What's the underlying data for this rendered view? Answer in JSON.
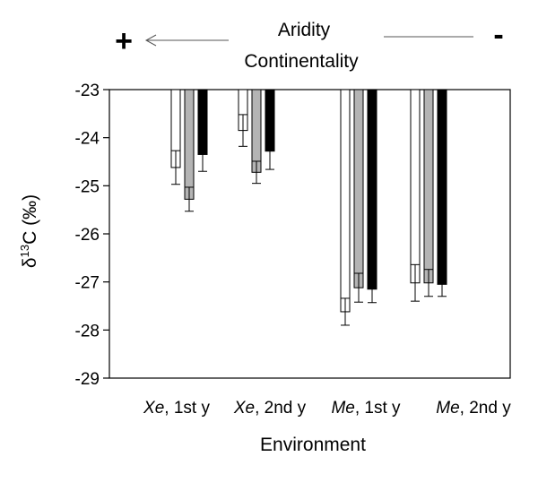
{
  "header": {
    "label_line1": "Aridity",
    "label_line2": "Continentality",
    "plus": "+",
    "minus": "-"
  },
  "chart_data": {
    "type": "bar",
    "categories_main": [
      "Xe",
      "Xe",
      "Me",
      "Me"
    ],
    "categories_rest": [
      ", 1st y",
      ", 2nd y",
      ", 1st y",
      ", 2nd y"
    ],
    "ylabel": {
      "prefix": "δ",
      "sup": "13",
      "suffix": "C (‰)"
    },
    "xlabel": "Environment",
    "ylim": [
      -29,
      -23
    ],
    "yticks": [
      -23,
      -24,
      -25,
      -26,
      -27,
      -28,
      -29
    ],
    "grid": false,
    "bar_baseline": -23,
    "series": [
      {
        "color": "#ffffff",
        "values": [
          -24.62,
          -23.85,
          -27.62,
          -27.02
        ],
        "errors": [
          0.35,
          0.33,
          0.28,
          0.38
        ]
      },
      {
        "color": "#b4b4b4",
        "values": [
          -25.28,
          -24.72,
          -27.12,
          -27.02
        ],
        "errors": [
          0.25,
          0.23,
          0.3,
          0.28
        ]
      },
      {
        "color": "#000000",
        "values": [
          -24.35,
          -24.28,
          -27.15,
          -27.05
        ],
        "errors": [
          0.35,
          0.38,
          0.28,
          0.25
        ]
      }
    ]
  }
}
